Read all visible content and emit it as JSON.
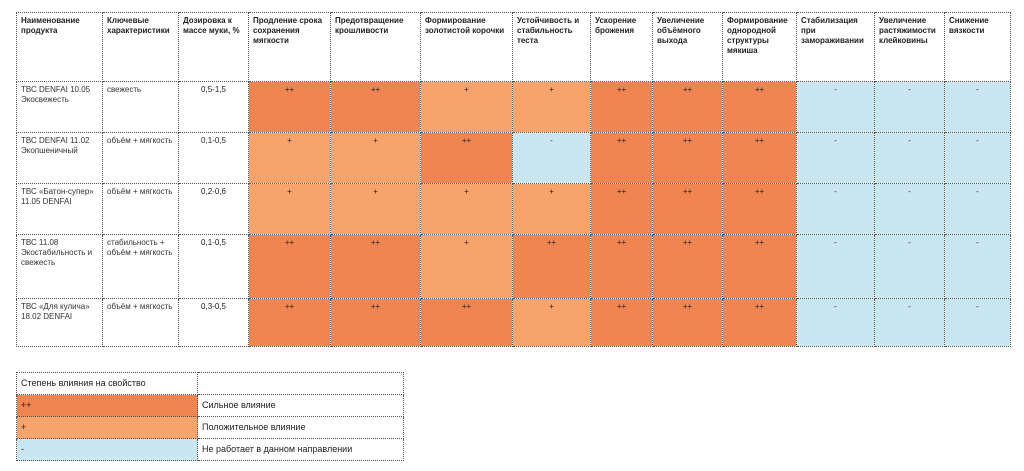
{
  "colors": {
    "strong": "#F08552",
    "positive": "#F6A36C",
    "none": "#C9E6F1"
  },
  "table": {
    "headers": [
      "Наименование продукта",
      "Ключевые характеристики",
      "Дозировка к массе муки, %",
      "Продление срока сохранения мягкости",
      "Предотвращение крошливости",
      "Формирование золотистой корочки",
      "Устойчивость и стабильность теста",
      "Ускорение брожения",
      "Увеличение объёмного выхода",
      "Формирование однородной структуры мякиша",
      "Стабилизация при замораживании",
      "Увеличение растяжимости клейковины",
      "Снижение вязкости"
    ],
    "rows": [
      {
        "product": "ТВС DENFAI 10.05 Экосвежесть",
        "characteristics": "свежесть",
        "dosage": "0,5-1,5",
        "effects": [
          "++",
          "++",
          "+",
          "+",
          "++",
          "++",
          "++",
          "-",
          "-",
          "-"
        ]
      },
      {
        "product": "ТВС DENFAI 11.02 Экопшеничный",
        "characteristics": "объём + мягкость",
        "dosage": "0,1-0,5",
        "effects": [
          "+",
          "+",
          "++",
          "-",
          "++",
          "++",
          "++",
          "-",
          "-",
          "-"
        ]
      },
      {
        "product": "ТВС «Батон-супер» 11.05 DENFAI",
        "characteristics": "объём + мягкость",
        "dosage": "0,2-0,6",
        "effects": [
          "+",
          "+",
          "+",
          "+",
          "++",
          "++",
          "++",
          "-",
          "-",
          "-"
        ]
      },
      {
        "product": "ТВС 11.08 Экостабильность и свежесть",
        "characteristics": "стабильность + объём + мягкость",
        "dosage": "0,1-0,5",
        "effects": [
          "++",
          "++",
          "+",
          "++",
          "++",
          "++",
          "++",
          "-",
          "-",
          "-"
        ]
      },
      {
        "product": "ТВС «Для кулича» 18.02 DENFAI",
        "characteristics": "объём + мягкость",
        "dosage": "0,3-0,5",
        "effects": [
          "++",
          "++",
          "++",
          "+",
          "++",
          "++",
          "++",
          "-",
          "-",
          "-"
        ]
      }
    ]
  },
  "legend": {
    "title": "Степень влияния на свойство",
    "items": [
      {
        "symbol": "++",
        "label": "Сильное влияние",
        "level": "strong"
      },
      {
        "symbol": "+",
        "label": "Положительное влияние",
        "level": "positive"
      },
      {
        "symbol": "-",
        "label": "Не работает в данном направлении",
        "level": "none"
      }
    ]
  }
}
